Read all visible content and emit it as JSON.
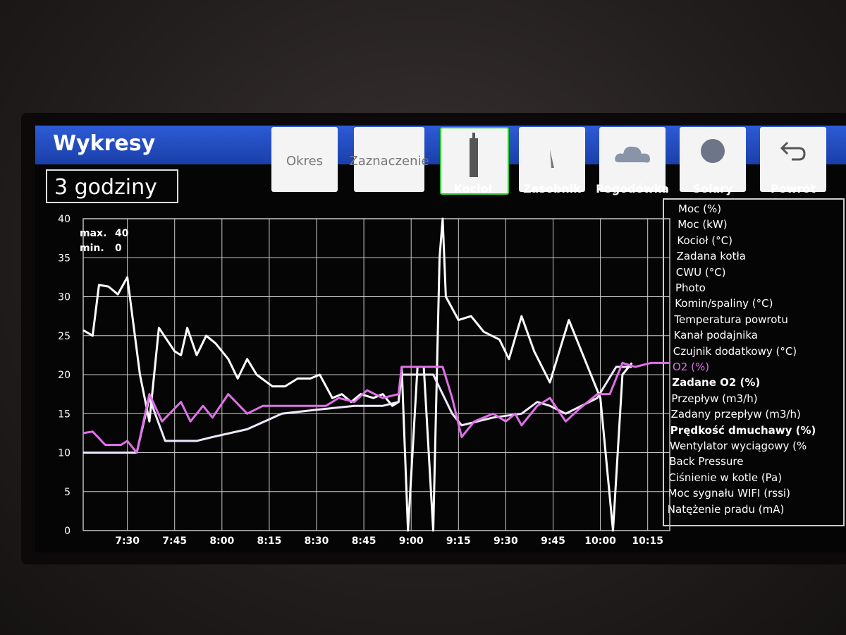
{
  "header": {
    "title": "Wykresy"
  },
  "period": "3 godziny",
  "buttons": [
    "Okres",
    "Zaznaczenie",
    "Kocioł",
    "Zasobnik",
    "Pogodówka",
    "Solary",
    "Powrót"
  ],
  "chart_data": {
    "type": "line",
    "xlim": [
      436,
      622
    ],
    "xticks": [
      {
        "value": 450,
        "label": "7:30"
      },
      {
        "value": 465,
        "label": "7:45"
      },
      {
        "value": 480,
        "label": "8:00"
      },
      {
        "value": 495,
        "label": "8:15"
      },
      {
        "value": 510,
        "label": "8:30"
      },
      {
        "value": 525,
        "label": "8:45"
      },
      {
        "value": 540,
        "label": "9:00"
      },
      {
        "value": 555,
        "label": "9:15"
      },
      {
        "value": 570,
        "label": "9:30"
      },
      {
        "value": 585,
        "label": "9:45"
      },
      {
        "value": 600,
        "label": "10:00"
      },
      {
        "value": 615,
        "label": "10:15"
      }
    ],
    "ylim": [
      0,
      40
    ],
    "yticks": [
      0,
      5,
      10,
      15,
      20,
      25,
      30,
      35,
      40
    ],
    "grid": true,
    "annotations": [
      {
        "label": "max.",
        "value": 40
      },
      {
        "label": "min.",
        "value": 0
      }
    ],
    "series": [
      {
        "color": "#ffffff",
        "x": [
          436,
          439,
          441,
          444,
          447,
          450,
          454,
          457,
          460,
          465,
          467,
          469,
          472,
          475,
          478,
          482,
          485,
          488,
          491,
          496,
          500,
          504,
          508,
          511,
          515,
          518,
          521,
          524,
          528,
          531,
          534,
          536,
          537,
          539,
          542,
          544,
          547,
          549,
          550,
          551,
          555,
          559,
          563,
          568,
          571,
          575,
          579,
          584,
          590,
          596,
          600,
          604,
          607,
          610
        ],
        "values": [
          25.7,
          25,
          31.5,
          31.3,
          30.3,
          32.5,
          20,
          14,
          26,
          23,
          22.5,
          26,
          22.5,
          25,
          24,
          22,
          19.5,
          22,
          20,
          18.5,
          18.5,
          19.5,
          19.5,
          20,
          17,
          17.5,
          16.5,
          17.5,
          17,
          17.5,
          16,
          16.5,
          21,
          0,
          21,
          21,
          0,
          35,
          40,
          30,
          27,
          27.5,
          25.5,
          24.5,
          22,
          27.5,
          23,
          19,
          27,
          21,
          17,
          0,
          20,
          21.5
        ]
      },
      {
        "color": "#f0e8ff",
        "x": [
          436,
          453,
          457,
          462,
          472,
          477,
          488,
          499,
          510,
          522,
          531,
          536,
          537,
          544,
          547,
          553,
          556,
          566,
          575,
          580,
          584,
          589,
          599,
          605,
          610
        ],
        "values": [
          10,
          10,
          17,
          11.5,
          11.5,
          12,
          13,
          15,
          15.5,
          16,
          16,
          16.5,
          20,
          20,
          20,
          15,
          13.5,
          14.5,
          15,
          16.5,
          16,
          15,
          17,
          21,
          21
        ]
      },
      {
        "color": "#e070e8",
        "x": [
          436,
          439,
          443,
          448,
          450,
          453,
          457,
          461,
          467,
          470,
          474,
          477,
          482,
          488,
          493,
          497,
          504,
          513,
          517,
          522,
          526,
          531,
          536,
          537,
          544,
          550,
          553,
          556,
          560,
          566,
          570,
          573,
          575,
          580,
          584,
          589,
          593,
          599,
          603,
          607,
          611,
          616,
          622
        ],
        "values": [
          12.5,
          12.7,
          11,
          11,
          11.5,
          10,
          17.5,
          14,
          16.5,
          14,
          16,
          14.5,
          17.5,
          15,
          16,
          16,
          16,
          16,
          17,
          16.5,
          18,
          17,
          17.5,
          21,
          21,
          21,
          17,
          12,
          14,
          15,
          14,
          15,
          13.5,
          16,
          17,
          14,
          15.5,
          17.5,
          17.5,
          21.5,
          21,
          21.5,
          21.5
        ]
      }
    ],
    "channels": [
      {
        "label": "Moc  (%)"
      },
      {
        "label": "Moc  (kW)"
      },
      {
        "label": "Kocioł (°C)"
      },
      {
        "label": "Zadana kotła"
      },
      {
        "label": "CWU (°C)"
      },
      {
        "label": "Photo"
      },
      {
        "label": "Komin/spaliny (°C)"
      },
      {
        "label": "Temperatura powrotu"
      },
      {
        "label": "Kanał podajnika"
      },
      {
        "label": "Czujnik dodatkowy (°C)"
      },
      {
        "label": "O2 (%)",
        "color": "#e070e8"
      },
      {
        "label": "Zadane O2 (%)",
        "bold": true
      },
      {
        "label": "Przepływ (m3/h)"
      },
      {
        "label": "Zadany przepływ (m3/h)"
      },
      {
        "label": "Prędkość dmuchawy (%)",
        "bold": true
      },
      {
        "label": "Wentylator wyciągowy (%"
      },
      {
        "label": "Back Pressure"
      },
      {
        "label": "Ciśnienie w kotle (Pa)"
      },
      {
        "label": "Moc sygnału WIFI (rssi)"
      },
      {
        "label": "Natężenie pradu (mA)"
      }
    ]
  }
}
